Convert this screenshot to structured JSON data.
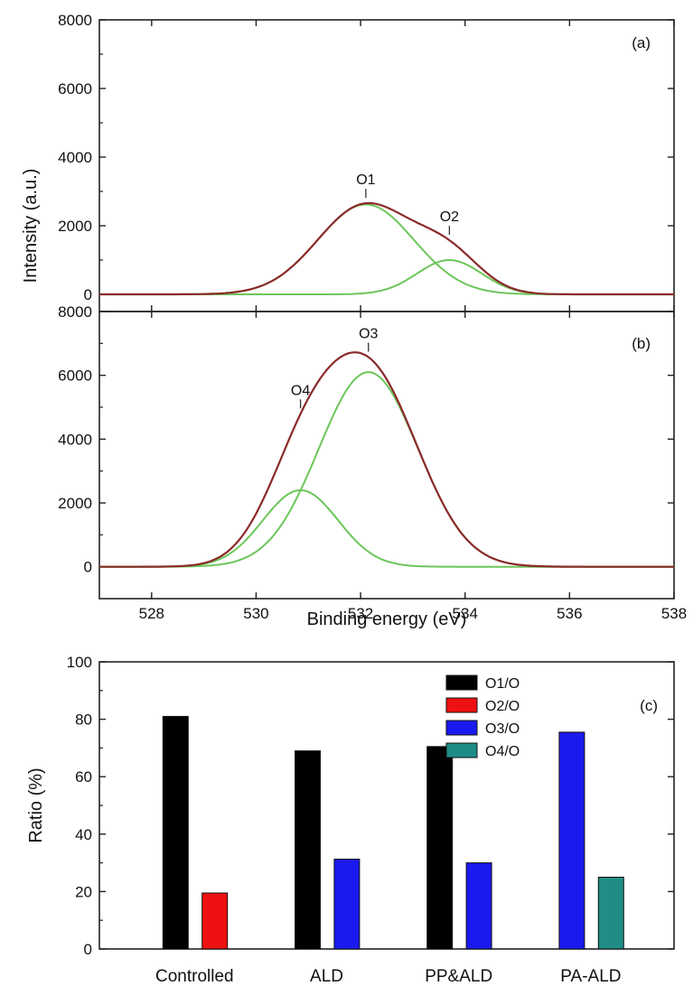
{
  "chart_data": [
    {
      "panel": "(a)",
      "type": "line",
      "xlabel": "Binding energy (eV)",
      "ylabel": "Intensity (a.u.)",
      "xlim": [
        527,
        538
      ],
      "ylim": [
        -500,
        8000
      ],
      "x_ticks": [
        528,
        530,
        532,
        534,
        536,
        538
      ],
      "y_ticks": [
        0,
        2000,
        4000,
        6000,
        8000
      ],
      "peaks": [
        {
          "label": "O1",
          "center": 532.1,
          "amplitude": 2620,
          "sigma": 0.92
        },
        {
          "label": "O2",
          "center": 533.7,
          "amplitude": 1000,
          "sigma": 0.62
        }
      ],
      "envelope_color": "#8b2a2a",
      "component_color": "#6cc65a"
    },
    {
      "panel": "(b)",
      "type": "line",
      "xlabel": "Binding energy (eV)",
      "ylabel": "Intensity (a.u.)",
      "xlim": [
        527,
        538
      ],
      "ylim": [
        -1000,
        8000
      ],
      "x_ticks": [
        528,
        530,
        532,
        534,
        536,
        538
      ],
      "y_ticks": [
        0,
        2000,
        4000,
        6000,
        8000
      ],
      "peaks": [
        {
          "label": "O3",
          "center": 532.15,
          "amplitude": 6100,
          "sigma": 0.95
        },
        {
          "label": "O4",
          "center": 530.85,
          "amplitude": 2400,
          "sigma": 0.72
        }
      ],
      "envelope_color": "#8b2a2a",
      "component_color": "#6cc65a"
    },
    {
      "panel": "(c)",
      "type": "bar",
      "ylabel": "Ratio (%)",
      "ylim": [
        0,
        100
      ],
      "y_ticks": [
        0,
        20,
        40,
        60,
        80,
        100
      ],
      "categories": [
        "Controlled",
        "ALD",
        "PP&ALD",
        "PA-ALD"
      ],
      "series": [
        {
          "name": "O1/O",
          "color": "#000000",
          "values": [
            81,
            69,
            70.5,
            null
          ]
        },
        {
          "name": "O2/O",
          "color": "#ee1111",
          "values": [
            19.5,
            null,
            null,
            null
          ]
        },
        {
          "name": "O3/O",
          "color": "#1a1aee",
          "values": [
            null,
            31.3,
            30,
            75.5
          ]
        },
        {
          "name": "O4/O",
          "color": "#1f8c86",
          "values": [
            null,
            null,
            null,
            25
          ]
        }
      ],
      "legend_position": "top-right"
    }
  ]
}
